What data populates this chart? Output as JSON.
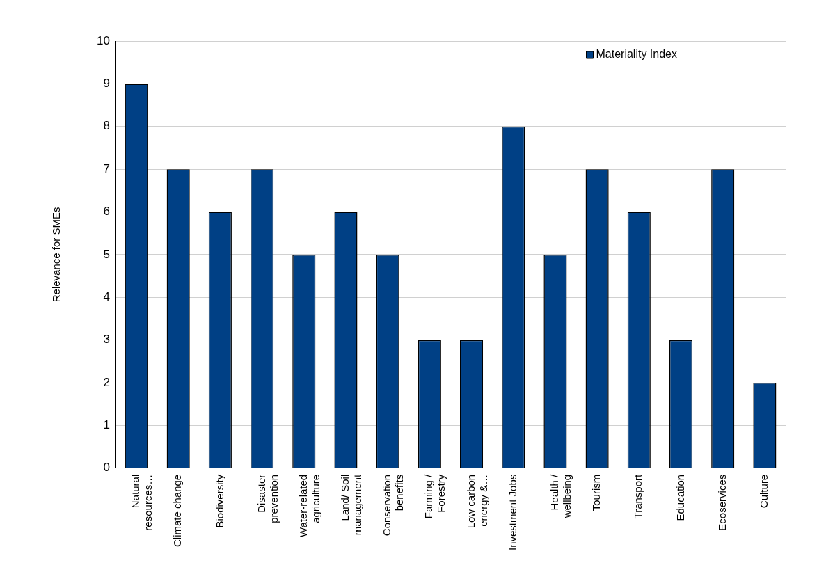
{
  "chart_data": {
    "type": "bar",
    "ylabel": "Relevance for SMEs",
    "categories": [
      "Natural resources…",
      "Climate change",
      "Biodiversity",
      "Disaster prevention",
      "Water-related agriculture",
      "Land/ Soil management",
      "Conservation benefits",
      "Farming / Forestry",
      "Low carbon energy &…",
      "Investment Jobs",
      "Health / wellbeing",
      "Tourism",
      "Transport",
      "Education",
      "Ecoservices",
      "Culture"
    ],
    "series": [
      {
        "name": "Materiality Index",
        "color": "#004085",
        "values": [
          9,
          7,
          6,
          7,
          5,
          6,
          5,
          3,
          3,
          8,
          5,
          7,
          6,
          3,
          7,
          2
        ]
      }
    ],
    "ylim": [
      0,
      10
    ],
    "yticks": [
      0,
      1,
      2,
      3,
      4,
      5,
      6,
      7,
      8,
      9,
      10
    ],
    "grid": "y",
    "legend": "top right"
  }
}
